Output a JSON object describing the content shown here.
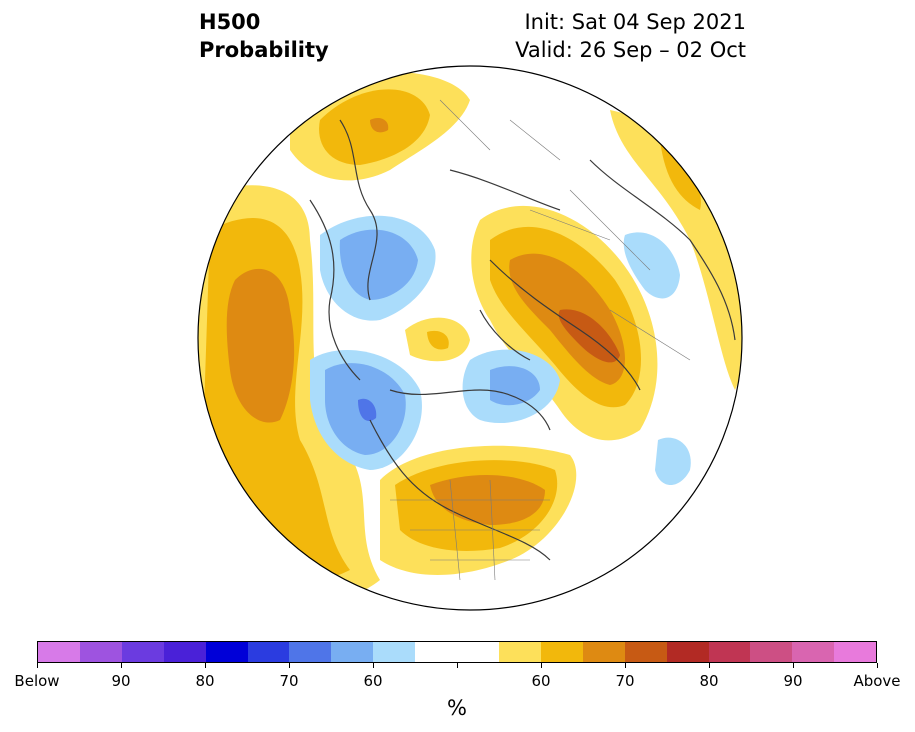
{
  "title": {
    "left_line1": "H500",
    "left_line2": "Probability",
    "right_line1": "Init: Sat 04 Sep 2021",
    "right_line2": "Valid: 26 Sep – 02 Oct"
  },
  "colorbar": {
    "colors": [
      "#d77ae8",
      "#9e53e0",
      "#6b3be0",
      "#4a21d8",
      "#0000d8",
      "#2b3ce0",
      "#4f75e8",
      "#78aef2",
      "#aadcfb",
      "#ffffff",
      "#ffffff",
      "#fde05a",
      "#f2b80c",
      "#de8a12",
      "#c75a14",
      "#b22a24",
      "#c03553",
      "#cd4f84",
      "#d965b0",
      "#e87adc"
    ],
    "labels": [
      "Below",
      "90",
      "80",
      "70",
      "60",
      "60",
      "70",
      "80",
      "90",
      "Above"
    ],
    "unit": "%"
  }
}
